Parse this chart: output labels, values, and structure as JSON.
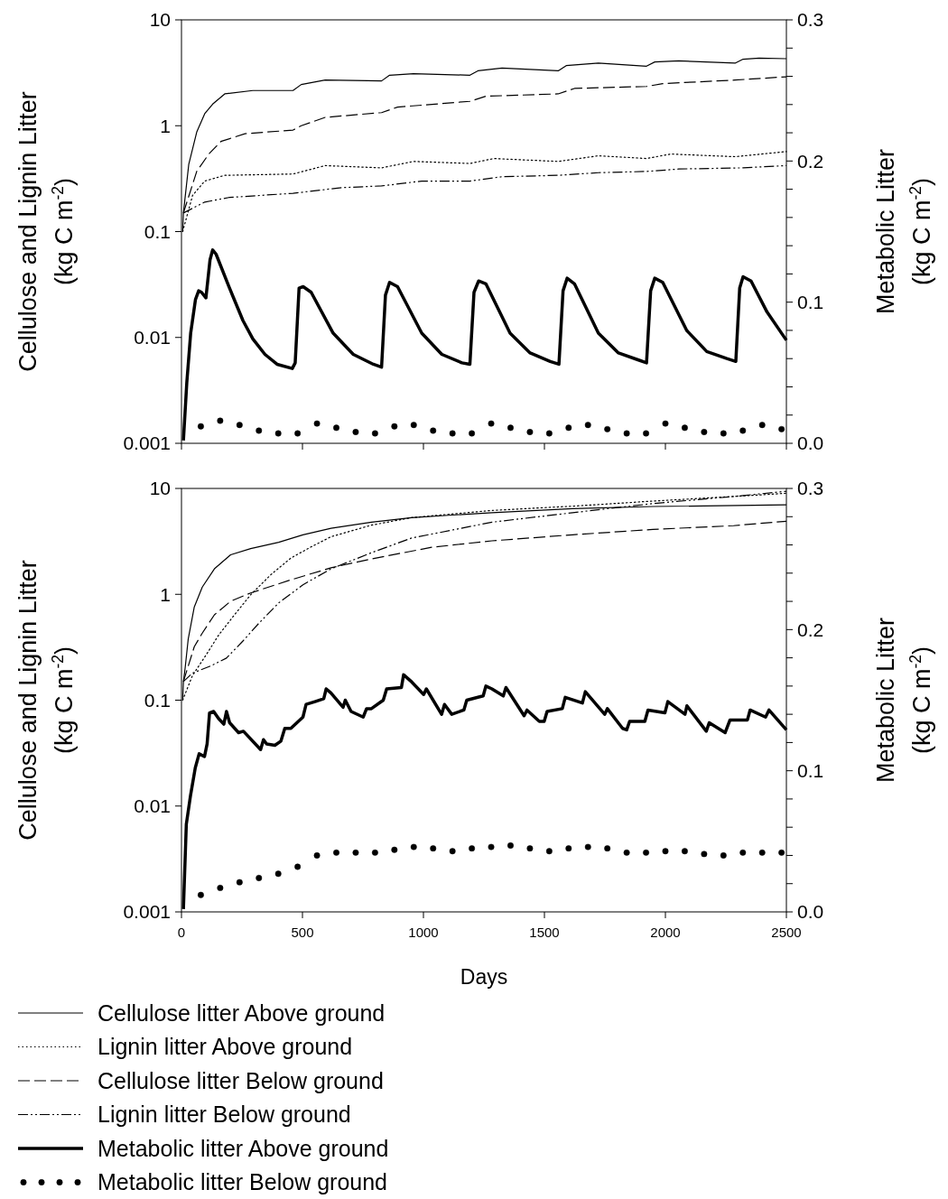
{
  "chart_data": [
    {
      "type": "line",
      "xlim": [
        0,
        2500
      ],
      "xticks": [
        0,
        500,
        1000,
        1500,
        2000,
        2500
      ],
      "ylim": [
        0.001,
        10
      ],
      "yticks": [
        0.001,
        0.01,
        0.1,
        1,
        10
      ],
      "log": "y",
      "y2lim": [
        0,
        0.3
      ],
      "y2ticks": [
        {
          "value": 0,
          "label": "0.0"
        },
        {
          "value": 0.02,
          "label": null
        },
        {
          "value": 0.04,
          "label": null
        },
        {
          "value": 0.06,
          "label": null
        },
        {
          "value": 0.08,
          "label": null
        },
        {
          "value": 0.1,
          "label": "0.1"
        },
        {
          "value": 0.12,
          "label": null
        },
        {
          "value": 0.14,
          "label": null
        },
        {
          "value": 0.16,
          "label": null
        },
        {
          "value": 0.18,
          "label": null
        },
        {
          "value": 0.2,
          "label": "0.2"
        },
        {
          "value": 0.22,
          "label": null
        },
        {
          "value": 0.24,
          "label": null
        },
        {
          "value": 0.26,
          "label": null
        },
        {
          "value": 0.28,
          "label": null
        },
        {
          "value": 0.3,
          "label": "0.3"
        }
      ],
      "tick_labels": "y",
      "ylabel": "Cellulose and Lignin Litter\n(kg C m$^{-2}$)",
      "y2label": "Metabolic Litter\n(kg C m$^{-2}$)",
      "series": [
        {
          "color": "#000000",
          "line_style": "solid",
          "x": [
            5,
            8,
            30,
            63,
            96,
            129,
            179,
            295,
            461,
            495,
            594,
            827,
            860,
            959,
            1192,
            1225,
            1325,
            1557,
            1590,
            1723,
            1922,
            1956,
            2055,
            2288,
            2321,
            2387,
            2500
          ],
          "values": [
            0.1,
            0.15,
            0.43,
            0.87,
            1.3,
            1.6,
            2.0,
            2.15,
            2.15,
            2.45,
            2.7,
            2.65,
            3.0,
            3.1,
            3.0,
            3.3,
            3.5,
            3.3,
            3.7,
            3.9,
            3.65,
            4.0,
            4.1,
            3.9,
            4.25,
            4.35,
            4.3
          ]
        },
        {
          "color": "#000000",
          "line_style": "dotted",
          "x": [
            5,
            46,
            96,
            179,
            461,
            594,
            827,
            959,
            1192,
            1291,
            1557,
            1723,
            1922,
            2022,
            2288,
            2500
          ],
          "values": [
            0.1,
            0.22,
            0.3,
            0.34,
            0.35,
            0.42,
            0.4,
            0.46,
            0.44,
            0.49,
            0.46,
            0.52,
            0.49,
            0.54,
            0.51,
            0.57
          ]
        },
        {
          "color": "#000000",
          "line_style": "dashed",
          "x": [
            8,
            63,
            113,
            163,
            262,
            461,
            495,
            594,
            827,
            893,
            1192,
            1258,
            1557,
            1624,
            1922,
            1989,
            2288,
            2500
          ],
          "values": [
            0.15,
            0.37,
            0.54,
            0.71,
            0.84,
            0.91,
            1.0,
            1.2,
            1.33,
            1.5,
            1.7,
            1.9,
            2.0,
            2.25,
            2.35,
            2.5,
            2.7,
            2.9
          ]
        },
        {
          "color": "#000000",
          "line_style": "dashdot",
          "x": [
            8,
            96,
            196,
            461,
            661,
            827,
            993,
            1192,
            1325,
            1557,
            1723,
            1922,
            2055,
            2321,
            2500
          ],
          "values": [
            0.15,
            0.19,
            0.21,
            0.23,
            0.26,
            0.27,
            0.3,
            0.3,
            0.33,
            0.34,
            0.36,
            0.37,
            0.39,
            0.4,
            0.42
          ]
        },
        {
          "color": "#000000",
          "line_style": "solid",
          "axis": "y2",
          "x": [
            8,
            22,
            38,
            58,
            71,
            83,
            101,
            118,
            129,
            143,
            196,
            254,
            295,
            345,
            395,
            458,
            470,
            486,
            503,
            536,
            627,
            710,
            793,
            827,
            843,
            860,
            893,
            993,
            1076,
            1159,
            1192,
            1209,
            1228,
            1258,
            1358,
            1441,
            1524,
            1560,
            1577,
            1594,
            1624,
            1723,
            1806,
            1889,
            1922,
            1939,
            1956,
            1989,
            2088,
            2171,
            2254,
            2291,
            2307,
            2321,
            2354,
            2420,
            2500
          ],
          "values": [
            0.002,
            0.043,
            0.078,
            0.102,
            0.108,
            0.107,
            0.103,
            0.13,
            0.137,
            0.134,
            0.111,
            0.087,
            0.074,
            0.063,
            0.056,
            0.053,
            0.057,
            0.11,
            0.111,
            0.107,
            0.078,
            0.063,
            0.056,
            0.054,
            0.105,
            0.114,
            0.111,
            0.078,
            0.063,
            0.057,
            0.056,
            0.107,
            0.115,
            0.113,
            0.078,
            0.064,
            0.058,
            0.056,
            0.108,
            0.117,
            0.113,
            0.078,
            0.064,
            0.059,
            0.057,
            0.108,
            0.117,
            0.114,
            0.08,
            0.065,
            0.06,
            0.058,
            0.11,
            0.118,
            0.115,
            0.093,
            0.073
          ]
        },
        {
          "type": "scatter",
          "color": "#000000",
          "marker": "circle",
          "axis": "y2",
          "x": [
            80,
            160,
            240,
            320,
            400,
            480,
            560,
            640,
            720,
            800,
            880,
            960,
            1040,
            1120,
            1200,
            1280,
            1360,
            1440,
            1520,
            1600,
            1680,
            1760,
            1840,
            1920,
            2000,
            2080,
            2160,
            2240,
            2320,
            2400,
            2480
          ],
          "values": [
            0.012,
            0.016,
            0.013,
            0.009,
            0.007,
            0.007,
            0.014,
            0.011,
            0.008,
            0.007,
            0.012,
            0.013,
            0.009,
            0.007,
            0.007,
            0.014,
            0.011,
            0.008,
            0.007,
            0.011,
            0.013,
            0.01,
            0.007,
            0.007,
            0.014,
            0.011,
            0.008,
            0.007,
            0.009,
            0.013,
            0.01
          ]
        }
      ]
    },
    {
      "type": "line",
      "xlim": [
        0,
        2500
      ],
      "xticks": [
        0,
        500,
        1000,
        1500,
        2000,
        2500
      ],
      "ylim": [
        0.001,
        10
      ],
      "yticks": [
        0.001,
        0.01,
        0.1,
        1,
        10
      ],
      "log": "y",
      "y2lim": [
        0,
        0.3
      ],
      "y2ticks": [
        {
          "value": 0,
          "label": "0.0"
        },
        {
          "value": 0.02,
          "label": null
        },
        {
          "value": 0.04,
          "label": null
        },
        {
          "value": 0.06,
          "label": null
        },
        {
          "value": 0.08,
          "label": null
        },
        {
          "value": 0.1,
          "label": "0.1"
        },
        {
          "value": 0.12,
          "label": null
        },
        {
          "value": 0.14,
          "label": null
        },
        {
          "value": 0.16,
          "label": null
        },
        {
          "value": 0.18,
          "label": null
        },
        {
          "value": 0.2,
          "label": "0.2"
        },
        {
          "value": 0.22,
          "label": null
        },
        {
          "value": 0.24,
          "label": null
        },
        {
          "value": 0.26,
          "label": null
        },
        {
          "value": 0.28,
          "label": null
        },
        {
          "value": 0.3,
          "label": "0.3"
        }
      ],
      "xlabel": "Days",
      "ylabel": "Cellulose and Lignin Litter\n(kg C m$^{-2}$)",
      "y2label": "Metabolic Litter\n(kg C m$^{-2}$)",
      "legend": "bottom",
      "series": [
        {
          "name": "Cellulose litter Above ground",
          "color": "#000000",
          "line_style": "solid",
          "x": [
            5,
            8,
            15,
            28,
            53,
            86,
            136,
            203,
            286,
            402,
            502,
            618,
            785,
            951,
            1117,
            1283,
            1616,
            1948,
            2500
          ],
          "values": [
            0.1,
            0.15,
            0.2,
            0.38,
            0.76,
            1.17,
            1.74,
            2.36,
            2.7,
            3.1,
            3.65,
            4.2,
            4.8,
            5.3,
            5.6,
            5.9,
            6.45,
            6.75,
            7.0
          ]
        },
        {
          "name": "Lignin litter Above ground",
          "color": "#000000",
          "line_style": "dotted",
          "x": [
            5,
            45,
            103,
            153,
            219,
            286,
            369,
            452,
            535,
            618,
            785,
            951,
            1283,
            1616,
            1948,
            2281,
            2500
          ],
          "values": [
            0.1,
            0.17,
            0.27,
            0.41,
            0.64,
            0.99,
            1.53,
            2.2,
            2.8,
            3.5,
            4.5,
            5.3,
            6.2,
            6.8,
            7.6,
            8.4,
            9.0
          ]
        },
        {
          "name": "Cellulose litter Below ground",
          "color": "#000000",
          "line_style": "dashed",
          "x": [
            8,
            53,
            86,
            136,
            203,
            286,
            452,
            618,
            785,
            1034,
            1283,
            1616,
            1948,
            2281,
            2500
          ],
          "values": [
            0.15,
            0.32,
            0.43,
            0.64,
            0.86,
            1.03,
            1.37,
            1.78,
            2.16,
            2.78,
            3.2,
            3.65,
            4.1,
            4.45,
            4.9
          ]
        },
        {
          "name": "Lignin litter Below ground",
          "color": "#000000",
          "line_style": "dashdot",
          "x": [
            8,
            45,
            120,
            186,
            253,
            319,
            402,
            502,
            618,
            785,
            951,
            1283,
            1616,
            1948,
            2281,
            2500
          ],
          "values": [
            0.15,
            0.18,
            0.21,
            0.25,
            0.36,
            0.53,
            0.83,
            1.23,
            1.74,
            2.47,
            3.4,
            4.8,
            5.9,
            7.2,
            8.4,
            9.4
          ]
        },
        {
          "name": "Metabolic litter Above ground",
          "color": "#000000",
          "line_style": "solid",
          "axis": "y2",
          "x": [
            8,
            20,
            37,
            57,
            73,
            95,
            106,
            116,
            133,
            153,
            175,
            186,
            199,
            236,
            256,
            327,
            339,
            352,
            386,
            411,
            427,
            452,
            502,
            515,
            552,
            588,
            598,
            618,
            668,
            677,
            701,
            751,
            765,
            785,
            834,
            848,
            909,
            918,
            951,
            1001,
            1012,
            1075,
            1087,
            1117,
            1167,
            1179,
            1247,
            1258,
            1283,
            1330,
            1341,
            1416,
            1428,
            1479,
            1499,
            1511,
            1574,
            1586,
            1657,
            1669,
            1749,
            1760,
            1823,
            1840,
            1852,
            1915,
            1928,
            1998,
            2010,
            2081,
            2089,
            2169,
            2181,
            2247,
            2267,
            2339,
            2350,
            2414,
            2428,
            2500
          ],
          "values": [
            0.002,
            0.062,
            0.082,
            0.102,
            0.112,
            0.11,
            0.119,
            0.141,
            0.142,
            0.137,
            0.133,
            0.142,
            0.134,
            0.127,
            0.128,
            0.115,
            0.122,
            0.119,
            0.118,
            0.121,
            0.13,
            0.13,
            0.138,
            0.147,
            0.149,
            0.151,
            0.158,
            0.155,
            0.145,
            0.15,
            0.142,
            0.138,
            0.144,
            0.144,
            0.15,
            0.158,
            0.159,
            0.168,
            0.163,
            0.154,
            0.158,
            0.14,
            0.147,
            0.14,
            0.143,
            0.15,
            0.153,
            0.16,
            0.158,
            0.153,
            0.159,
            0.139,
            0.143,
            0.135,
            0.135,
            0.142,
            0.144,
            0.152,
            0.148,
            0.156,
            0.14,
            0.144,
            0.13,
            0.129,
            0.135,
            0.135,
            0.143,
            0.141,
            0.149,
            0.14,
            0.146,
            0.128,
            0.134,
            0.127,
            0.136,
            0.136,
            0.143,
            0.138,
            0.143,
            0.129
          ]
        },
        {
          "name": "Metabolic litter Below ground",
          "type": "scatter",
          "color": "#000000",
          "marker": "circle",
          "axis": "y2",
          "x": [
            80,
            160,
            240,
            320,
            400,
            480,
            560,
            640,
            720,
            800,
            880,
            960,
            1040,
            1120,
            1200,
            1280,
            1360,
            1440,
            1520,
            1600,
            1680,
            1760,
            1840,
            1920,
            2000,
            2080,
            2160,
            2240,
            2320,
            2400,
            2480
          ],
          "values": [
            0.012,
            0.017,
            0.021,
            0.024,
            0.027,
            0.032,
            0.04,
            0.042,
            0.042,
            0.042,
            0.044,
            0.046,
            0.045,
            0.043,
            0.045,
            0.046,
            0.047,
            0.045,
            0.043,
            0.045,
            0.046,
            0.045,
            0.042,
            0.042,
            0.043,
            0.043,
            0.041,
            0.04,
            0.042,
            0.042,
            0.042
          ]
        }
      ]
    }
  ]
}
